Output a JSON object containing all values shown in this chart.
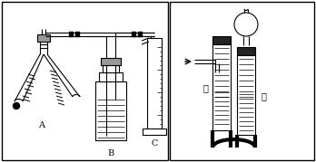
{
  "bg_color": "#ffffff",
  "line_color": "#000000",
  "label_A": "A",
  "label_B": "B",
  "label_C": "C",
  "label_jia": "甲",
  "label_yi": "乙",
  "figsize": [
    3.48,
    1.79
  ],
  "dpi": 100
}
